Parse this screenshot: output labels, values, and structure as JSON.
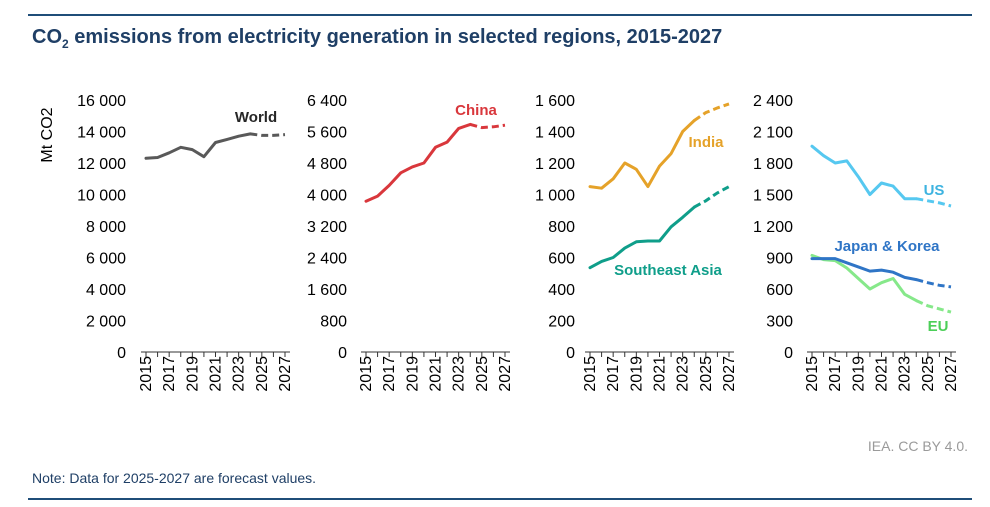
{
  "title": {
    "prefix": "CO",
    "sub": "2",
    "suffix": " emissions from electricity generation in selected regions, 2015-2027"
  },
  "credit": "IEA. CC BY 4.0.",
  "note": "Note: Data for 2025-2027 are forecast values.",
  "chart_data": [
    {
      "type": "line",
      "ylabel": "Mt CO2",
      "ylim": [
        0,
        16000
      ],
      "yticks": [
        0,
        2000,
        4000,
        6000,
        8000,
        10000,
        12000,
        14000,
        16000
      ],
      "ytick_labels": [
        "0",
        "2 000",
        "4 000",
        "6 000",
        "8 000",
        "10 000",
        "12 000",
        "14 000",
        "16 000"
      ],
      "x": [
        2015,
        2016,
        2017,
        2018,
        2019,
        2020,
        2021,
        2022,
        2023,
        2024,
        2025,
        2026,
        2027
      ],
      "xtick_labels": [
        "2015",
        "2017",
        "2019",
        "2021",
        "2023",
        "2025",
        "2027"
      ],
      "forecast_from": 2024,
      "series": [
        {
          "name": "World",
          "color": "#595959",
          "label_color": "#262626",
          "values": [
            12300,
            12350,
            12650,
            13000,
            12850,
            12400,
            13300,
            13500,
            13700,
            13850,
            13750,
            13750,
            13800
          ]
        }
      ]
    },
    {
      "type": "line",
      "ylim": [
        0,
        6400
      ],
      "yticks": [
        0,
        800,
        1600,
        2400,
        3200,
        4000,
        4800,
        5600,
        6400
      ],
      "ytick_labels": [
        "0",
        "800",
        "1 600",
        "2 400",
        "3 200",
        "4 000",
        "4 800",
        "5 600",
        "6 400"
      ],
      "x": [
        2015,
        2016,
        2017,
        2018,
        2019,
        2020,
        2021,
        2022,
        2023,
        2024,
        2025,
        2026,
        2027
      ],
      "xtick_labels": [
        "2015",
        "2017",
        "2019",
        "2021",
        "2023",
        "2025",
        "2027"
      ],
      "forecast_from": 2024,
      "series": [
        {
          "name": "China",
          "color": "#d9373c",
          "label_color": "#d9373c",
          "values": [
            3830,
            3960,
            4230,
            4550,
            4700,
            4800,
            5200,
            5330,
            5680,
            5780,
            5700,
            5720,
            5760
          ]
        }
      ]
    },
    {
      "type": "line",
      "ylim": [
        0,
        1600
      ],
      "yticks": [
        0,
        200,
        400,
        600,
        800,
        1000,
        1200,
        1400,
        1600
      ],
      "ytick_labels": [
        "0",
        "200",
        "400",
        "600",
        "800",
        "1 000",
        "1 200",
        "1 400",
        "1 600"
      ],
      "x": [
        2015,
        2016,
        2017,
        2018,
        2019,
        2020,
        2021,
        2022,
        2023,
        2024,
        2025,
        2026,
        2027
      ],
      "xtick_labels": [
        "2015",
        "2017",
        "2019",
        "2021",
        "2023",
        "2025",
        "2027"
      ],
      "forecast_from": 2024,
      "series": [
        {
          "name": "India",
          "color": "#e5a229",
          "label_color": "#e5a229",
          "values": [
            1050,
            1040,
            1100,
            1200,
            1160,
            1050,
            1180,
            1260,
            1400,
            1470,
            1520,
            1550,
            1575
          ]
        },
        {
          "name": "Southeast Asia",
          "color": "#0f9e8a",
          "label_color": "#0f9e8a",
          "values": [
            535,
            575,
            600,
            660,
            700,
            705,
            705,
            795,
            855,
            920,
            960,
            1010,
            1050
          ]
        }
      ]
    },
    {
      "type": "line",
      "ylim": [
        0,
        2400
      ],
      "yticks": [
        0,
        300,
        600,
        900,
        1200,
        1500,
        1800,
        2100,
        2400
      ],
      "ytick_labels": [
        "0",
        "300",
        "600",
        "900",
        "1 200",
        "1 500",
        "1 800",
        "2 100",
        "2 400"
      ],
      "x": [
        2015,
        2016,
        2017,
        2018,
        2019,
        2020,
        2021,
        2022,
        2023,
        2024,
        2025,
        2026,
        2027
      ],
      "xtick_labels": [
        "2015",
        "2017",
        "2019",
        "2021",
        "2023",
        "2025",
        "2027"
      ],
      "forecast_from": 2024,
      "series": [
        {
          "name": "US",
          "color": "#56c8f0",
          "label_color": "#3db3e0",
          "values": [
            1960,
            1870,
            1800,
            1820,
            1670,
            1500,
            1610,
            1580,
            1460,
            1460,
            1440,
            1420,
            1390
          ]
        },
        {
          "name": "EU",
          "color": "#86e88a",
          "label_color": "#4ccf58",
          "values": [
            920,
            880,
            870,
            800,
            700,
            600,
            660,
            700,
            550,
            490,
            440,
            410,
            380
          ]
        },
        {
          "name": "Japan & Korea",
          "color": "#2f75c6",
          "label_color": "#2f75c6",
          "values": [
            890,
            890,
            890,
            850,
            810,
            770,
            780,
            760,
            710,
            690,
            660,
            635,
            620
          ]
        }
      ]
    }
  ]
}
